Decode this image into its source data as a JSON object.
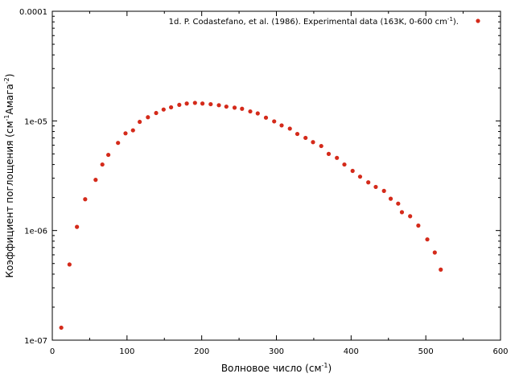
{
  "chart_data": {
    "type": "scatter",
    "title": "",
    "xlabel": {
      "main": "Волновое число (см",
      "sup": "-1",
      "tail": ")"
    },
    "ylabel": {
      "main": "Коэффициент поглощения (см",
      "sup1": "-1",
      "mid": "Амага",
      "sup2": "-2",
      "tail": ")"
    },
    "xlim": [
      0,
      600
    ],
    "ylim": [
      1e-07,
      0.0001
    ],
    "yscale": "log",
    "x_ticks": [
      "0",
      "100",
      "200",
      "300",
      "400",
      "500",
      "600"
    ],
    "y_ticks": [
      "1e-07",
      "1e-06",
      "1e-05",
      "0.0001"
    ],
    "legend_position": "top-right",
    "series": [
      {
        "name": "1d. P. Codastefano, et al. (1986). Experimental data (163K, 0-600 cm",
        "name_sup": "-1",
        "name_tail": ").",
        "color": "#d42a1a",
        "points": [
          [
            12,
            1.3e-07
          ],
          [
            23,
            4.9e-07
          ],
          [
            33,
            1.08e-06
          ],
          [
            44,
            1.93e-06
          ],
          [
            58,
            2.9e-06
          ],
          [
            67,
            4e-06
          ],
          [
            75,
            4.9e-06
          ],
          [
            88,
            6.3e-06
          ],
          [
            98,
            7.7e-06
          ],
          [
            108,
            8.2e-06
          ],
          [
            117,
            9.8e-06
          ],
          [
            128,
            1.08e-05
          ],
          [
            139,
            1.18e-05
          ],
          [
            149,
            1.27e-05
          ],
          [
            159,
            1.33e-05
          ],
          [
            170,
            1.4e-05
          ],
          [
            180,
            1.44e-05
          ],
          [
            191,
            1.46e-05
          ],
          [
            201,
            1.44e-05
          ],
          [
            212,
            1.42e-05
          ],
          [
            223,
            1.39e-05
          ],
          [
            233,
            1.35e-05
          ],
          [
            244,
            1.32e-05
          ],
          [
            254,
            1.29e-05
          ],
          [
            265,
            1.22e-05
          ],
          [
            275,
            1.17e-05
          ],
          [
            286,
            1.07e-05
          ],
          [
            297,
            9.9e-06
          ],
          [
            307,
            9.1e-06
          ],
          [
            318,
            8.5e-06
          ],
          [
            328,
            7.6e-06
          ],
          [
            339,
            7e-06
          ],
          [
            349,
            6.4e-06
          ],
          [
            360,
            5.9e-06
          ],
          [
            370,
            5e-06
          ],
          [
            381,
            4.6e-06
          ],
          [
            391,
            4e-06
          ],
          [
            402,
            3.5e-06
          ],
          [
            412,
            3.1e-06
          ],
          [
            423,
            2.75e-06
          ],
          [
            433,
            2.5e-06
          ],
          [
            444,
            2.3e-06
          ],
          [
            453,
            1.95e-06
          ],
          [
            463,
            1.76e-06
          ],
          [
            468,
            1.47e-06
          ],
          [
            479,
            1.35e-06
          ],
          [
            490,
            1.11e-06
          ],
          [
            502,
            8.3e-07
          ],
          [
            512,
            6.3e-07
          ],
          [
            520,
            4.4e-07
          ]
        ]
      }
    ]
  }
}
